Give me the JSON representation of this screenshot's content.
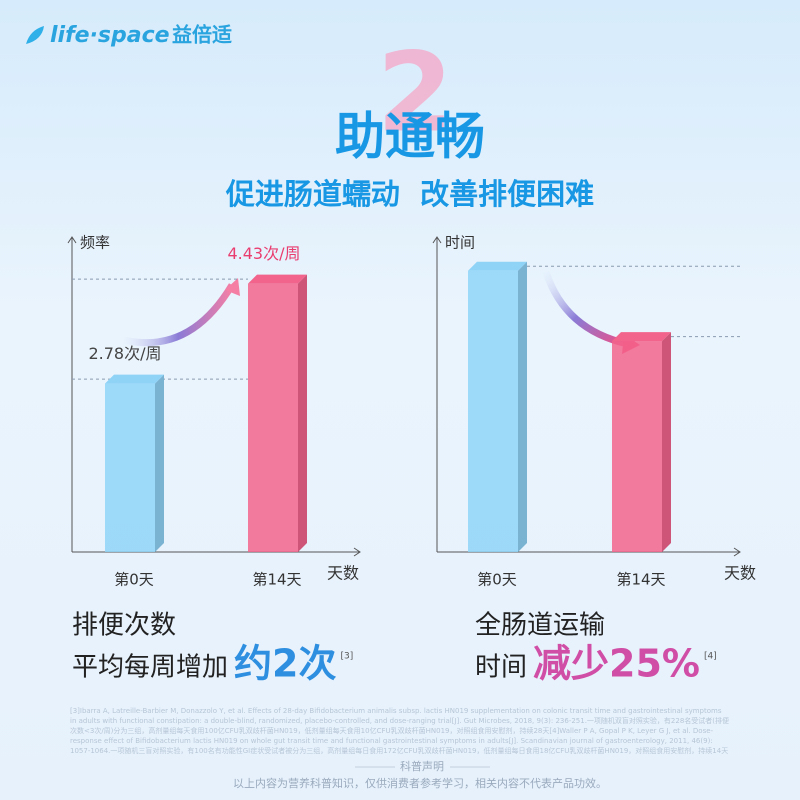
{
  "header": {
    "brand": "life·space",
    "brand_cn": "益倍适",
    "badge": "2",
    "title": "助通畅",
    "subtitle": "促进肠道蠕动  改善排便困难"
  },
  "chart_data": [
    {
      "type": "bar",
      "y_label": "频率",
      "x_label": "天数",
      "categories": [
        "第0天",
        "第14天"
      ],
      "values": [
        2.78,
        4.43
      ],
      "value_labels": [
        "2.78次/周",
        "4.43次/周"
      ],
      "colors": [
        "#8fd3f7",
        "#f2648c"
      ],
      "ylim": [
        0,
        5.2
      ]
    },
    {
      "type": "bar",
      "y_label": "时间",
      "x_label": "天数",
      "categories": [
        "第0天",
        "第14天"
      ],
      "values": [
        100,
        75
      ],
      "colors": [
        "#8fd3f7",
        "#f2648c"
      ],
      "ylim": [
        0,
        112
      ]
    }
  ],
  "captions": [
    {
      "line1": "排便次数",
      "line2": "平均每周增加",
      "highlight": "约2次",
      "ref": "[3]"
    },
    {
      "line1": "全肠道运输",
      "line2": "时间",
      "highlight": "减少25%",
      "ref": "[4]"
    }
  ],
  "footnote": "[3]Ibarra A, Latreille-Barbier M, Donazzolo Y, et al. Effects of 28-day Bifidobacterium animalis subsp. lactis HN019 supplementation on colonic transit time and gastrointestinal symptoms in adults with functional constipation: a double-blind, randomized, placebo-controlled, and dose-ranging trial[J]. Gut Microbes, 2018, 9(3): 236-251.一项随机双盲对照实验，有228名受试者(排便次数<3次/周)分为三组，高剂量组每天食用100亿CFU乳双歧杆菌HN019，低剂量组每天食用10亿CFU乳双歧杆菌HN019，对照组食用安慰剂，持续28天[4]Waller P A, Gopal P K, Leyer G J, et al. Dose-response effect of Bifidobacterium lactis HN019 on whole gut transit time and functional gastrointestinal symptoms in adults[J]. Scandinavian journal of gastroenterology, 2011, 46(9): 1057-1064.一项随机三盲对照实验，有100名有功能性GI症状受试者被分为三组，高剂量组每日食用172亿CFU乳双歧杆菌HN019，低剂量组每日食用18亿CFU乳双歧杆菌HN019，对照组食用安慰剂，持续14天",
  "disclaimer": {
    "title": "科普声明",
    "text": "以上内容为营养科普知识，仅供消费者参考学习，相关内容不代表产品功效。"
  }
}
